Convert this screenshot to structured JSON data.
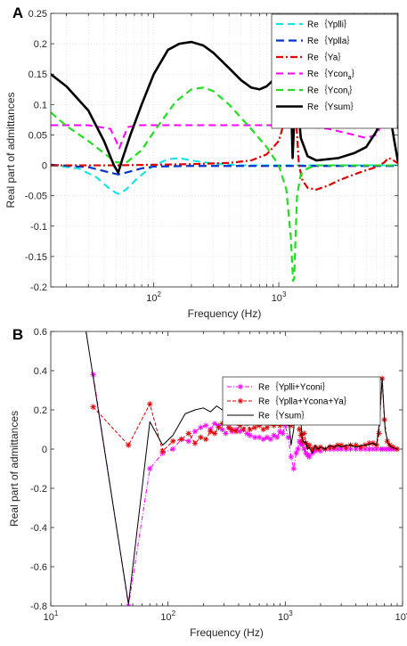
{
  "chart_data": [
    {
      "panel_label": "A",
      "type": "line",
      "xlabel": "Frequency (Hz)",
      "ylabel": "Real part of admittances",
      "xscale": "log",
      "xlim": [
        15,
        9000
      ],
      "ylim": [
        -0.2,
        0.25
      ],
      "yticks": [
        "-0.2",
        "-0.15",
        "-0.1",
        "-0.05",
        "0",
        "0.05",
        "0.1",
        "0.15",
        "0.2",
        "0.25"
      ],
      "xticks": [
        {
          "value": 100,
          "label": "10",
          "exp": "2"
        },
        {
          "value": 1000,
          "label": "10",
          "exp": "3"
        }
      ],
      "grid": true,
      "legend_position": "top-right",
      "series": [
        {
          "name": "Re｛Yplli｝",
          "color": "#00e5e5",
          "dash": "8,5",
          "width": 2,
          "x": [
            15,
            25,
            35,
            45,
            52,
            60,
            75,
            100,
            130,
            160,
            200,
            300,
            500,
            800,
            1200,
            2000,
            4000,
            6500,
            8000,
            9000
          ],
          "y": [
            0.0,
            -0.005,
            -0.02,
            -0.04,
            -0.047,
            -0.04,
            -0.02,
            0.0,
            0.01,
            0.012,
            0.008,
            0.003,
            0.0,
            0.0,
            0.0,
            0.0,
            0.0,
            0.0,
            0.0,
            0.0
          ]
        },
        {
          "name": "Re｛Yplla｝",
          "color": "#0033cc",
          "dash": "9,5",
          "width": 2.2,
          "x": [
            15,
            30,
            45,
            52,
            60,
            80,
            100,
            200,
            500,
            1000,
            2000,
            5000,
            9000
          ],
          "y": [
            0.001,
            -0.003,
            -0.012,
            -0.015,
            -0.012,
            -0.005,
            -0.002,
            -0.001,
            -0.001,
            -0.001,
            -0.001,
            -0.001,
            -0.001
          ]
        },
        {
          "name": "Re｛Ya｝",
          "color": "#e00000",
          "dash": "8,3,2,3",
          "width": 2.2,
          "x": [
            15,
            50,
            100,
            200,
            400,
            600,
            800,
            1000,
            1100,
            1200,
            1280,
            1330,
            1380,
            1450,
            1550,
            1700,
            2000,
            2500,
            3000,
            4000,
            5000,
            6000,
            7000,
            7500,
            8000,
            9000
          ],
          "y": [
            0.0,
            0.0,
            0.001,
            0.002,
            0.004,
            0.008,
            0.018,
            0.04,
            0.07,
            0.11,
            0.138,
            0.13,
            0.07,
            0.0,
            -0.025,
            -0.037,
            -0.04,
            -0.033,
            -0.025,
            -0.015,
            -0.008,
            -0.003,
            0.005,
            0.012,
            0.01,
            0.003
          ]
        },
        {
          "name": "Re｛Ycon",
          "sub": "a",
          "name_suffix": "｝",
          "color": "#ff00ff",
          "dash": "8,5",
          "width": 2,
          "x": [
            15,
            30,
            45,
            50,
            53,
            57,
            62,
            75,
            100,
            200,
            500,
            1000,
            1500,
            2500,
            4000,
            5000,
            6000,
            6800,
            7500,
            8500,
            9000
          ],
          "y": [
            0.066,
            0.066,
            0.06,
            0.04,
            0.028,
            0.045,
            0.063,
            0.066,
            0.066,
            0.066,
            0.066,
            0.066,
            0.065,
            0.06,
            0.05,
            0.045,
            0.05,
            0.07,
            0.088,
            0.07,
            0.06
          ]
        },
        {
          "name": "Re｛Ycon",
          "sub": "i",
          "name_suffix": "｝",
          "color": "#22dd22",
          "dash": "8,5",
          "width": 2.2,
          "x": [
            15,
            20,
            30,
            40,
            50,
            60,
            80,
            100,
            150,
            200,
            250,
            300,
            400,
            600,
            800,
            1000,
            1150,
            1250,
            1300,
            1330,
            1360,
            1400,
            1500,
            1700,
            2000,
            3000,
            5000,
            9000
          ],
          "y": [
            0.087,
            0.065,
            0.04,
            0.02,
            0.005,
            0.004,
            0.025,
            0.055,
            0.105,
            0.125,
            0.128,
            0.122,
            0.1,
            0.06,
            0.03,
            0.0,
            -0.04,
            -0.12,
            -0.19,
            -0.185,
            -0.12,
            -0.05,
            -0.015,
            -0.005,
            0.0,
            0.0,
            0.0,
            0.0
          ]
        },
        {
          "name": "Re｛Ysum｝",
          "color": "#000000",
          "dash": "",
          "width": 2.6,
          "x": [
            15,
            20,
            30,
            40,
            48,
            52,
            56,
            65,
            80,
            100,
            130,
            160,
            200,
            250,
            300,
            400,
            500,
            600,
            700,
            800,
            900,
            1000,
            1100,
            1200,
            1260,
            1290,
            1320,
            1350,
            1400,
            1450,
            1500,
            1700,
            2000,
            3000,
            4000,
            5000,
            6000,
            6800,
            7300,
            7800,
            8400,
            9000
          ],
          "y": [
            0.15,
            0.13,
            0.09,
            0.04,
            0.0,
            -0.012,
            0.01,
            0.05,
            0.1,
            0.15,
            0.19,
            0.2,
            0.203,
            0.197,
            0.185,
            0.16,
            0.14,
            0.128,
            0.125,
            0.13,
            0.14,
            0.127,
            0.125,
            0.122,
            0.09,
            0.012,
            0.06,
            0.1,
            0.104,
            0.08,
            0.045,
            0.015,
            0.008,
            0.012,
            0.02,
            0.03,
            0.055,
            0.08,
            0.094,
            0.08,
            0.04,
            0.005
          ]
        }
      ]
    },
    {
      "panel_label": "B",
      "type": "line",
      "xlabel": "Frequency (Hz)",
      "ylabel": "Real part of admittances",
      "xscale": "log",
      "xlim": [
        10,
        10000
      ],
      "ylim": [
        -0.8,
        0.6
      ],
      "yticks": [
        "-0.8",
        "-0.6",
        "-0.4",
        "-0.2",
        "0",
        "0.2",
        "0.4",
        "0.6"
      ],
      "xticks": [
        {
          "value": 10,
          "label": "10",
          "exp": "1"
        },
        {
          "value": 100,
          "label": "10",
          "exp": "2"
        },
        {
          "value": 1000,
          "label": "10",
          "exp": "3"
        },
        {
          "value": 10000,
          "label": "10",
          "exp": "4"
        }
      ],
      "grid": false,
      "legend_position": "top-right",
      "series": [
        {
          "name": "Re｛Yplli+Yconi｝",
          "color": "#ff00ff",
          "dash": "5,2,1,2",
          "width": 1,
          "marker": "asterisk",
          "x": [
            23,
            46,
            70,
            90,
            110,
            130,
            150,
            170,
            190,
            210,
            230,
            250,
            270,
            290,
            310,
            330,
            350,
            380,
            410,
            440,
            470,
            500,
            550,
            600,
            650,
            700,
            750,
            800,
            850,
            900,
            950,
            1000,
            1060,
            1120,
            1180,
            1240,
            1280,
            1320,
            1360,
            1400,
            1450,
            1500,
            1550,
            1600,
            1700,
            1800,
            1900,
            2000,
            2200,
            2400,
            2600,
            2800,
            3000,
            3300,
            3600,
            4000,
            4400,
            4800,
            5200,
            5600,
            6000,
            6500,
            6800,
            7200,
            7600,
            8000,
            8500,
            9000
          ],
          "y": [
            0.38,
            -0.8,
            -0.1,
            -0.02,
            0.0,
            0.05,
            0.04,
            0.09,
            0.11,
            0.12,
            0.1,
            0.13,
            0.12,
            0.1,
            0.08,
            0.11,
            0.09,
            0.1,
            0.09,
            0.1,
            0.08,
            0.07,
            0.06,
            0.06,
            0.05,
            0.06,
            0.05,
            0.07,
            0.06,
            0.09,
            0.08,
            0.12,
            0.06,
            -0.04,
            -0.1,
            -0.02,
            0.0,
            0.04,
            0.03,
            0.02,
            0.0,
            -0.02,
            -0.03,
            -0.04,
            -0.02,
            -0.01,
            0.0,
            -0.01,
            0.0,
            0.0,
            0.0,
            0.0,
            0.0,
            0.0,
            0.0,
            0.0,
            0.0,
            0.0,
            0.0,
            0.0,
            0.0,
            0.0,
            0.0,
            0.0,
            0.0,
            0.0,
            0.0,
            0.0
          ]
        },
        {
          "name": "Re｛Yplla+Ycona+Ya｝",
          "color": "#e00000",
          "dash": "4,2",
          "width": 1,
          "marker": "asterisk",
          "x": [
            23,
            46,
            70,
            90,
            110,
            130,
            150,
            170,
            190,
            210,
            230,
            250,
            270,
            290,
            310,
            330,
            350,
            380,
            410,
            440,
            470,
            500,
            550,
            600,
            650,
            700,
            750,
            800,
            850,
            900,
            950,
            1000,
            1060,
            1120,
            1180,
            1240,
            1280,
            1320,
            1360,
            1400,
            1450,
            1500,
            1550,
            1600,
            1700,
            1800,
            1900,
            2000,
            2200,
            2400,
            2600,
            2800,
            3000,
            3300,
            3600,
            4000,
            4400,
            4800,
            5200,
            5600,
            6000,
            6300,
            6700,
            7000,
            7400,
            7800,
            8300,
            9000
          ],
          "y": [
            0.215,
            0.02,
            0.23,
            -0.01,
            0.04,
            0.05,
            0.08,
            0.03,
            0.06,
            0.05,
            0.09,
            0.08,
            0.11,
            0.13,
            0.14,
            0.11,
            0.1,
            0.09,
            0.12,
            0.1,
            0.13,
            0.1,
            0.11,
            0.12,
            0.1,
            0.11,
            0.13,
            0.12,
            0.14,
            0.12,
            0.13,
            0.18,
            0.13,
            0.12,
            0.24,
            0.2,
            0.15,
            0.1,
            0.07,
            0.04,
            0.08,
            0.03,
            0.01,
            0.02,
            0.0,
            0.01,
            0.0,
            0.01,
            0.0,
            0.01,
            0.01,
            0.02,
            0.02,
            0.01,
            0.02,
            0.02,
            0.01,
            0.02,
            0.03,
            0.03,
            0.02,
            0.08,
            0.36,
            0.15,
            0.04,
            0.02,
            0.01,
            0.0
          ]
        },
        {
          "name": "Re｛Ysum｝",
          "color": "#000000",
          "dash": "",
          "width": 1,
          "marker": "none",
          "x": [
            20,
            46,
            70,
            90,
            110,
            140,
            170,
            200,
            230,
            260,
            290,
            320,
            350,
            380,
            410,
            440,
            470,
            500,
            550,
            600,
            650,
            700,
            750,
            800,
            850,
            900,
            950,
            1000,
            1060,
            1120,
            1180,
            1240,
            1280,
            1320,
            1360,
            1400,
            1450,
            1500,
            1550,
            1600,
            1700,
            1800,
            1900,
            2000,
            2200,
            2400,
            2600,
            2800,
            3000,
            3300,
            3600,
            4000,
            4500,
            5000,
            5500,
            6000,
            6300,
            6700,
            7100,
            7500,
            8000,
            9000
          ],
          "y": [
            0.6,
            -0.79,
            0.14,
            0.02,
            0.07,
            0.18,
            0.2,
            0.21,
            0.19,
            0.22,
            0.2,
            0.25,
            0.23,
            0.2,
            0.22,
            0.19,
            0.27,
            0.16,
            0.2,
            0.19,
            0.16,
            0.15,
            0.17,
            0.16,
            0.19,
            0.21,
            0.2,
            0.24,
            0.17,
            0.02,
            0.1,
            0.3,
            0.26,
            0.2,
            0.13,
            0.05,
            0.03,
            0.04,
            0.0,
            0.01,
            -0.02,
            0.02,
            0.0,
            0.01,
            0.0,
            0.02,
            0.01,
            0.02,
            0.01,
            0.02,
            0.02,
            0.01,
            0.02,
            0.02,
            0.03,
            0.02,
            0.12,
            0.36,
            0.1,
            0.03,
            0.01,
            0.0
          ]
        }
      ]
    }
  ]
}
